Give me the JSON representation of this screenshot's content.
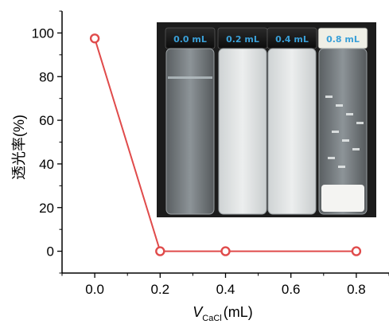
{
  "chart_data": {
    "type": "line",
    "x": [
      0.0,
      0.2,
      0.4,
      0.8
    ],
    "series": [
      {
        "values": [
          97.5,
          0,
          0,
          0
        ],
        "color": "#e04b4b",
        "marker": "open-circle"
      }
    ],
    "xlabel_main": "V",
    "xlabel_sub": "CaCl",
    "xlabel_unit": "(mL)",
    "ylabel": "透光率(%)",
    "xticks": [
      "0.0",
      "0.2",
      "0.4",
      "0.6",
      "0.8"
    ],
    "yticks": [
      "0",
      "20",
      "40",
      "60",
      "80",
      "100"
    ],
    "xlim": [
      -0.1,
      0.9
    ],
    "ylim": [
      -10,
      110
    ],
    "grid": false,
    "inset_photo": {
      "labels": [
        "0.0 mL",
        "0.2 mL",
        "0.4 mL",
        "0.8 mL"
      ],
      "label_color": "#3aa0d8",
      "background": "#1b1b1b"
    }
  }
}
